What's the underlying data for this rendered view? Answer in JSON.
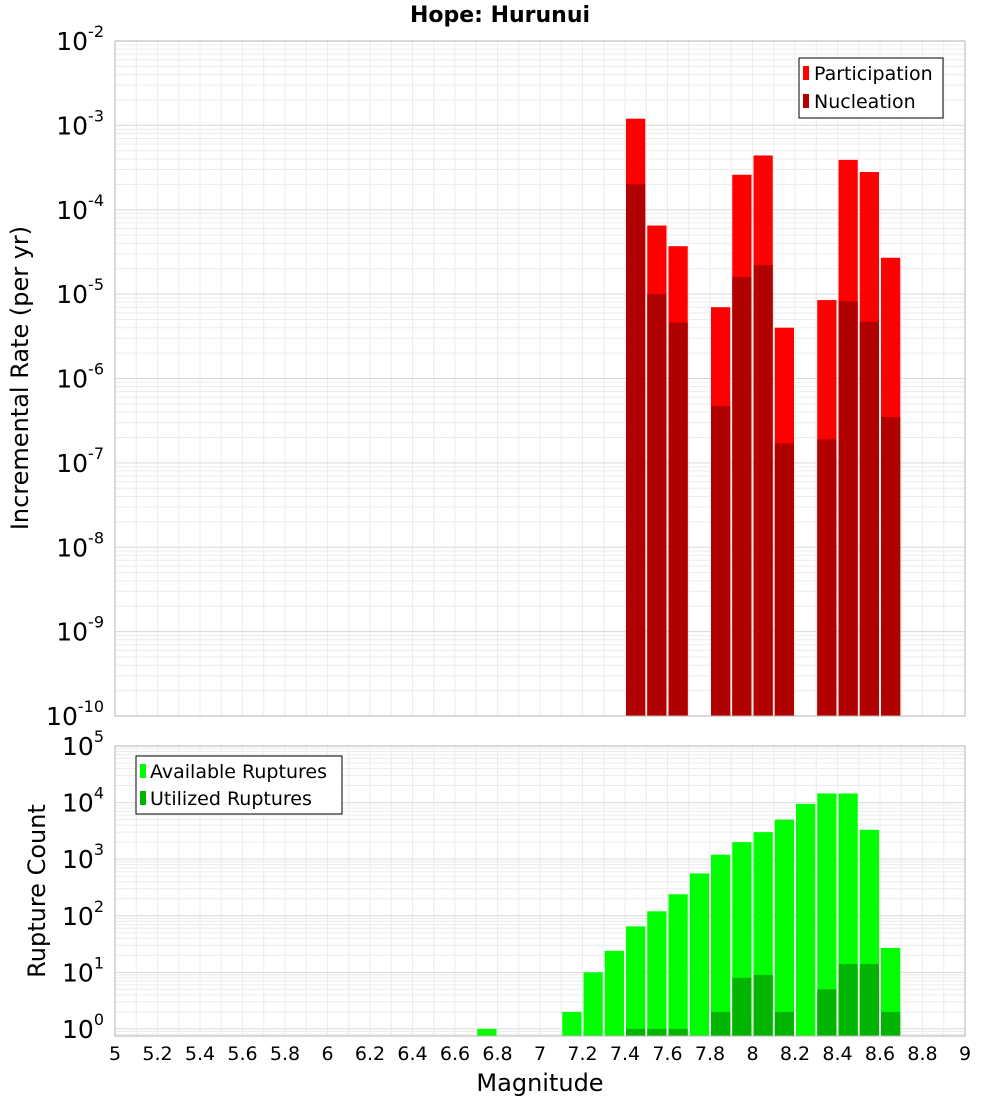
{
  "title": "Hope: Hurunui",
  "chart_data": [
    {
      "type": "bar",
      "panel": "top",
      "ylabel": "Incremental Rate (per yr)",
      "yscale": "log",
      "ylim": [
        1e-10,
        0.01
      ],
      "y_tick_exponents": [
        "-10",
        "-9",
        "-8",
        "-7",
        "-6",
        "-5",
        "-4",
        "-3",
        "-2"
      ],
      "xlim": [
        5,
        9
      ],
      "bin_width": 0.1,
      "legend_position": "top-right",
      "x": [
        7.45,
        7.55,
        7.65,
        7.85,
        7.95,
        8.05,
        8.15,
        8.35,
        8.45,
        8.55,
        8.65
      ],
      "series": [
        {
          "name": "Participation",
          "color": "#ff0000",
          "values": [
            0.0012,
            6.5e-05,
            3.7e-05,
            7e-06,
            0.00026,
            0.00044,
            4e-06,
            8.5e-06,
            0.00039,
            0.00028,
            2.7e-05
          ]
        },
        {
          "name": "Nucleation",
          "color": "#b00000",
          "values": [
            0.0002,
            1e-05,
            4.6e-06,
            4.7e-07,
            1.6e-05,
            2.2e-05,
            1.7e-07,
            1.9e-07,
            8.2e-06,
            4.7e-06,
            3.5e-07
          ]
        }
      ]
    },
    {
      "type": "bar",
      "panel": "bottom",
      "xlabel": "Magnitude",
      "ylabel": "Rupture Count",
      "yscale": "log",
      "ylim": [
        0.75,
        100000
      ],
      "y_tick_exponents": [
        "0",
        "1",
        "2",
        "3",
        "4",
        "5"
      ],
      "xlim": [
        5,
        9
      ],
      "x_tick_labels": [
        "5",
        "5.2",
        "5.4",
        "5.6",
        "5.8",
        "6",
        "6.2",
        "6.4",
        "6.6",
        "6.8",
        "7",
        "7.2",
        "7.4",
        "7.6",
        "7.8",
        "8",
        "8.2",
        "8.4",
        "8.6",
        "8.8",
        "9"
      ],
      "bin_width": 0.1,
      "legend_position": "top-left",
      "x": [
        6.75,
        7.15,
        7.25,
        7.35,
        7.45,
        7.55,
        7.65,
        7.75,
        7.85,
        7.95,
        8.05,
        8.15,
        8.25,
        8.35,
        8.45,
        8.55,
        8.65
      ],
      "series": [
        {
          "name": "Available Ruptures",
          "color": "#00ff00",
          "values": [
            1,
            2,
            10,
            24,
            65,
            120,
            240,
            560,
            1200,
            2000,
            3000,
            5000,
            9500,
            14500,
            14500,
            3300,
            27
          ]
        },
        {
          "name": "Utilized Ruptures",
          "color": "#00b400",
          "values": [
            0,
            0,
            0,
            0,
            1,
            1,
            1,
            0,
            2,
            8,
            9,
            2,
            0,
            5,
            14,
            14,
            2
          ]
        }
      ]
    }
  ]
}
